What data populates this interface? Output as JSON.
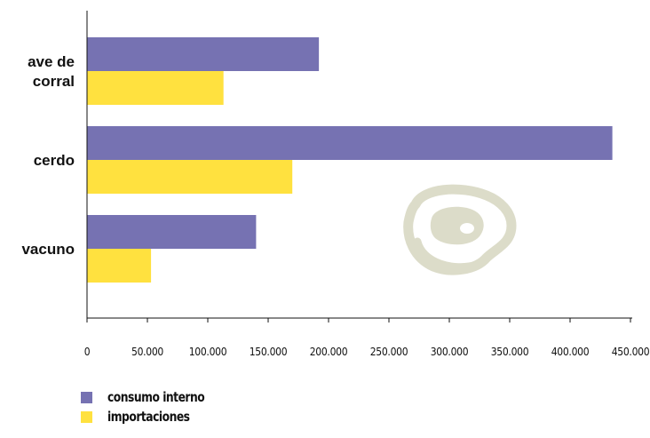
{
  "chart_data": {
    "type": "bar",
    "orientation": "horizontal",
    "categories": [
      [
        "ave de",
        "corral"
      ],
      [
        "cerdo"
      ],
      [
        "vacuno"
      ]
    ],
    "series": [
      {
        "name": "consumo interno",
        "values": [
          192000,
          435000,
          140000
        ],
        "color": "#7672b2"
      },
      {
        "name": "importaciones",
        "values": [
          113000,
          170000,
          53000
        ],
        "color": "#ffe13f"
      }
    ],
    "x_ticks": [
      "0",
      "50.000",
      "100.000",
      "150.000",
      "200.000",
      "250.000",
      "300.000",
      "350.000",
      "400.000",
      "450.000"
    ],
    "xlim": [
      0,
      450000
    ],
    "grid": false,
    "legend_position": "bottom-left",
    "watermark_icon": "meat-steak-icon"
  }
}
